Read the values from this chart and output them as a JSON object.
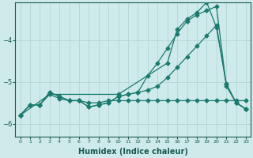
{
  "xlabel": "Humidex (Indice chaleur)",
  "background_color": "#ceeaea",
  "grid_color": "#b8d8d8",
  "line_color": "#1a7a6e",
  "series": {
    "line1_x": [
      0,
      1,
      2,
      3,
      4,
      5,
      6,
      7,
      8,
      9,
      10,
      11,
      12,
      13,
      14,
      15,
      16,
      17,
      18,
      19,
      20,
      21,
      22,
      23
    ],
    "line1_y": [
      -5.8,
      -5.55,
      -5.55,
      -5.3,
      -5.4,
      -5.45,
      -5.45,
      -5.5,
      -5.5,
      -5.45,
      -5.45,
      -5.45,
      -5.45,
      -5.45,
      -5.45,
      -5.45,
      -5.45,
      -5.45,
      -5.45,
      -5.45,
      -5.45,
      -5.45,
      -5.45,
      -5.45
    ],
    "line2_x": [
      0,
      3,
      10,
      15,
      16,
      17,
      18,
      19,
      20,
      21,
      22,
      23
    ],
    "line2_y": [
      -5.8,
      -5.3,
      -5.3,
      -4.55,
      -3.75,
      -3.5,
      -3.35,
      -3.1,
      -3.7,
      -5.05,
      -5.5,
      -5.65
    ],
    "line3_x": [
      0,
      1,
      2,
      3,
      4,
      5,
      6,
      7,
      8,
      9,
      10,
      11,
      12,
      13,
      14,
      15,
      16,
      17,
      18,
      19,
      20,
      21,
      22,
      23
    ],
    "line3_y": [
      -5.8,
      -5.55,
      -5.55,
      -5.25,
      -5.35,
      -5.45,
      -5.45,
      -5.6,
      -5.55,
      -5.5,
      -5.35,
      -5.3,
      -5.25,
      -4.85,
      -4.55,
      -4.2,
      -3.85,
      -3.55,
      -3.4,
      -3.3,
      -3.2,
      -5.1,
      -5.5,
      -5.65
    ],
    "line4_x": [
      0,
      1,
      2,
      3,
      4,
      5,
      6,
      7,
      8,
      9,
      10,
      11,
      12,
      13,
      14,
      15,
      16,
      17,
      18,
      19,
      20,
      21,
      22,
      23
    ],
    "line4_y": [
      -5.8,
      -5.55,
      -5.55,
      -5.25,
      -5.35,
      -5.45,
      -5.45,
      -5.6,
      -5.55,
      -5.5,
      -5.35,
      -5.3,
      -5.25,
      -5.2,
      -5.1,
      -4.9,
      -4.65,
      -4.4,
      -4.15,
      -3.9,
      -3.65,
      -5.05,
      -5.5,
      -5.65
    ]
  },
  "ylim": [
    -6.3,
    -3.1
  ],
  "xlim": [
    -0.5,
    23.5
  ],
  "yticks": [
    -6,
    -5,
    -4
  ],
  "xtick_labels": [
    "0",
    "1",
    "2",
    "3",
    "4",
    "5",
    "6",
    "7",
    "8",
    "9",
    "10",
    "11",
    "12",
    "13",
    "14",
    "15",
    "16",
    "17",
    "18",
    "19",
    "20",
    "21",
    "22",
    "23"
  ],
  "markersize": 2.5,
  "linewidth": 0.9,
  "tick_color": "#1a5a50",
  "label_fontsize": 6,
  "xlabel_fontsize": 7
}
